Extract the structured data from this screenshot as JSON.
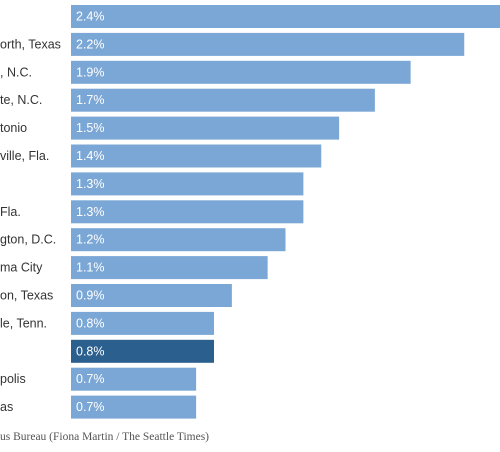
{
  "chart_data": {
    "type": "bar",
    "orientation": "horizontal",
    "categories": [
      "",
      "orth, Texas",
      ", N.C.",
      "te, N.C.",
      "tonio",
      "ville, Fla.",
      "",
      "Fla.",
      "gton, D.C.",
      "ma City",
      "on, Texas",
      "le, Tenn.",
      "",
      "polis",
      "as"
    ],
    "values": [
      2.4,
      2.2,
      1.9,
      1.7,
      1.5,
      1.4,
      1.3,
      1.3,
      1.2,
      1.1,
      0.9,
      0.8,
      0.8,
      0.7,
      0.7
    ],
    "value_labels": [
      "2.4%",
      "2.2%",
      "1.9%",
      "1.7%",
      "1.5%",
      "1.4%",
      "1.3%",
      "1.3%",
      "1.2%",
      "1.1%",
      "0.9%",
      "0.8%",
      "0.8%",
      "0.7%",
      "0.7%"
    ],
    "highlight_index": 12,
    "xlim": [
      0,
      2.4
    ],
    "grid": false,
    "colors": {
      "bar": "#7ba7d6",
      "highlight": "#2b5f8e"
    }
  },
  "footer": {
    "source": "us Bureau (Fiona Martin / The Seattle Times)"
  }
}
